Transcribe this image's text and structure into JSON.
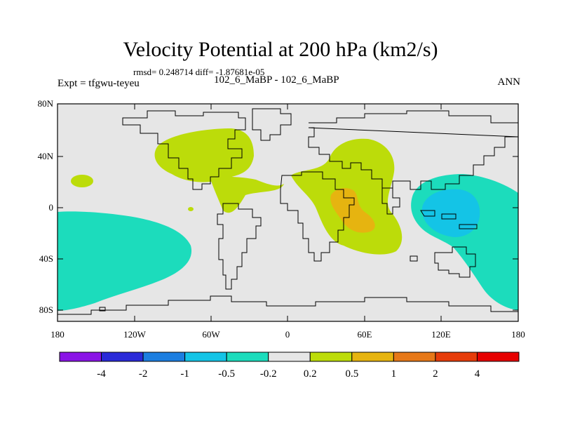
{
  "title": "Velocity Potential at 200 hPa (km2/s)",
  "stats": "rmsd= 0.248714 diff= -1.87681e-05",
  "expt": "Expt = tfgwu-teyeu",
  "cases": "102_6_MaBP - 102_6_MaBP",
  "season": "ANN",
  "axes": {
    "lat_ticks": [
      "80N",
      "40N",
      "0",
      "40S",
      "80S"
    ],
    "lon_ticks": [
      "180",
      "120W",
      "60W",
      "0",
      "60E",
      "120E",
      "180"
    ]
  },
  "colorbar": {
    "colors": [
      "#8a14e6",
      "#2a2ad8",
      "#1c7ee0",
      "#14c4e6",
      "#1cdcbc",
      "#e6e6e6",
      "#bcdc0a",
      "#e6b410",
      "#e67818",
      "#e63c0a",
      "#e60000"
    ],
    "labels": [
      "-4",
      "-2",
      "-1",
      "-0.5",
      "-0.2",
      "0.2",
      "0.5",
      "1",
      "2",
      "4"
    ]
  },
  "chart_data": {
    "type": "heatmap",
    "field": "velocity potential difference",
    "units": "km2/s",
    "level": "200 hPa",
    "lon_range": [
      -180,
      180
    ],
    "lat_range": [
      -90,
      90
    ],
    "contour_levels": [
      -4,
      -2,
      -1,
      -0.5,
      -0.2,
      0.2,
      0.5,
      1,
      2,
      4
    ],
    "background_interval": [
      -0.2,
      0.2
    ],
    "anomalies": [
      {
        "name": "north-atlantic-positive",
        "interval": [
          0.2,
          0.5
        ],
        "color": "#bcdc0a"
      },
      {
        "name": "africa-indian-ocean-positive",
        "interval": [
          0.2,
          0.5
        ],
        "color": "#bcdc0a"
      },
      {
        "name": "east-africa-peak",
        "interval": [
          0.5,
          1
        ],
        "color": "#e6b410"
      },
      {
        "name": "west-pacific-negative",
        "interval": [
          -0.5,
          -0.2
        ],
        "color": "#1cdcbc"
      },
      {
        "name": "west-pacific-core",
        "interval": [
          -1,
          -0.5
        ],
        "color": "#14c4e6"
      },
      {
        "name": "south-pacific-negative",
        "interval": [
          -0.5,
          -0.2
        ],
        "color": "#1cdcbc"
      },
      {
        "name": "central-pacific-small-positive",
        "interval": [
          0.2,
          0.5
        ],
        "color": "#bcdc0a"
      }
    ]
  }
}
